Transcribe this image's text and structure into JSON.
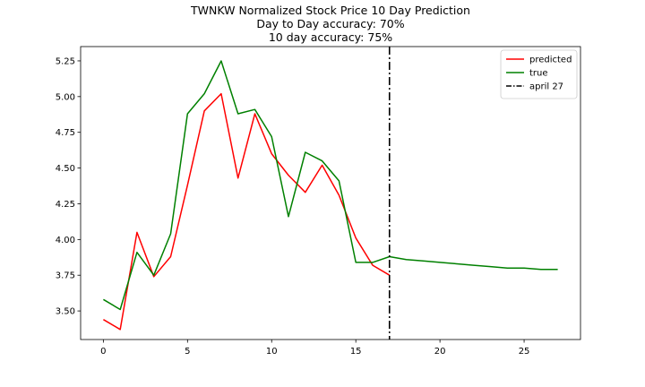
{
  "chart_data": {
    "type": "line",
    "title": "TWNKW Normalized Stock Price 10 Day Prediction",
    "subtitle_lines": [
      "Day to Day accuracy: 70%",
      "10 day accuracy: 75%"
    ],
    "xlabel": "",
    "ylabel": "",
    "xlim": [
      -1.35,
      28.35
    ],
    "ylim": [
      3.3,
      5.35
    ],
    "xticks": [
      0,
      5,
      10,
      15,
      20,
      25
    ],
    "yticks": [
      3.5,
      3.75,
      4.0,
      4.25,
      4.5,
      4.75,
      5.0,
      5.25
    ],
    "ytick_labels": [
      "3.50",
      "3.75",
      "4.00",
      "4.25",
      "4.50",
      "4.75",
      "5.00",
      "5.25"
    ],
    "series": [
      {
        "name": "predicted",
        "color": "#ff0000",
        "x": [
          0,
          1,
          2,
          3,
          4,
          5,
          6,
          7,
          8,
          9,
          10,
          11,
          12,
          13,
          14,
          15,
          16,
          17
        ],
        "y": [
          3.44,
          3.37,
          4.05,
          3.74,
          3.88,
          4.38,
          4.9,
          5.02,
          4.43,
          4.88,
          4.6,
          4.45,
          4.33,
          4.52,
          4.31,
          4.01,
          3.82,
          3.75
        ]
      },
      {
        "name": "true",
        "color": "#008000",
        "x": [
          0,
          1,
          2,
          3,
          4,
          5,
          6,
          7,
          8,
          9,
          10,
          11,
          12,
          13,
          14,
          15,
          16,
          17,
          18,
          19,
          20,
          21,
          22,
          23,
          24,
          25,
          26,
          27
        ],
        "y": [
          3.58,
          3.51,
          3.91,
          3.75,
          4.04,
          4.88,
          5.02,
          5.25,
          4.88,
          4.91,
          4.72,
          4.16,
          4.61,
          4.55,
          4.41,
          3.84,
          3.84,
          3.88,
          3.86,
          3.85,
          3.84,
          3.83,
          3.82,
          3.81,
          3.8,
          3.8,
          3.79,
          3.79
        ]
      }
    ],
    "vline": {
      "name": "april 27",
      "x": 17,
      "color": "#000000",
      "style": "dash-dot"
    },
    "legend_placement": "top-right",
    "grid": false
  }
}
